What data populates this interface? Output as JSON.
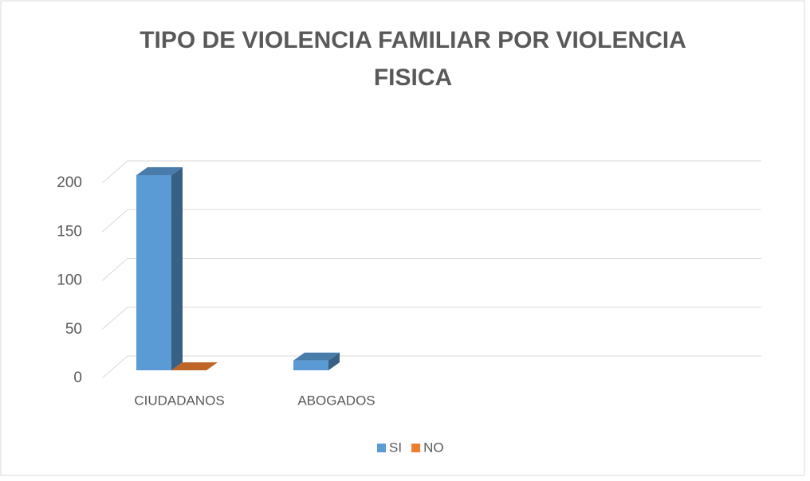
{
  "chart_data": {
    "type": "bar3d",
    "title": "TIPO DE VIOLENCIA FAMILIAR POR VIOLENCIA FISICA",
    "categories": [
      "CIUDADANOS",
      "ABOGADOS",
      null,
      null
    ],
    "series": [
      {
        "name": "SI",
        "color": "#5b9bd5",
        "values": [
          200,
          10,
          null,
          null
        ]
      },
      {
        "name": "NO",
        "color": "#ed7d31",
        "values": [
          0,
          null,
          null,
          null
        ]
      }
    ],
    "ylim": [
      0,
      200
    ],
    "yticks": [
      0,
      50,
      100,
      150,
      200
    ],
    "grid": true,
    "legend": "bottom"
  }
}
